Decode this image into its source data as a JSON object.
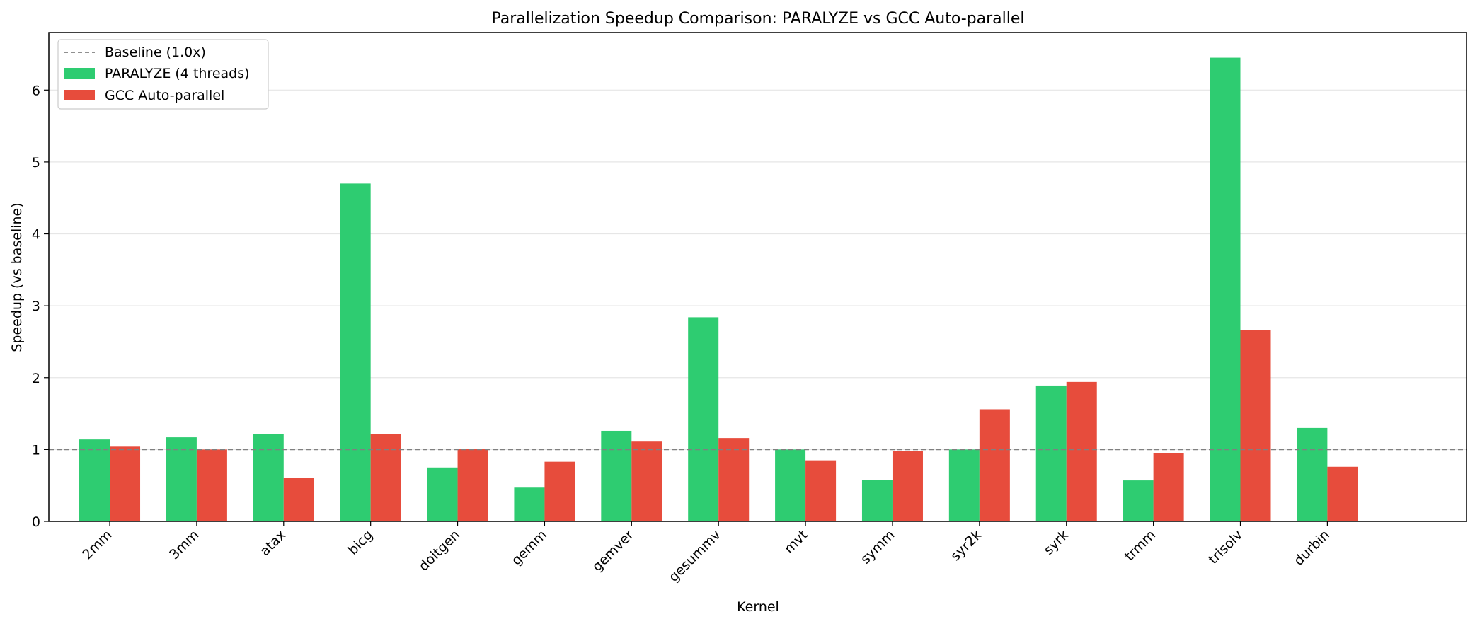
{
  "chart_data": {
    "type": "bar",
    "title": "Parallelization Speedup Comparison: PARALYZE vs GCC Auto-parallel",
    "xlabel": "Kernel",
    "ylabel": "Speedup (vs baseline)",
    "ylim": [
      0,
      6.8
    ],
    "yticks": [
      0,
      1,
      2,
      3,
      4,
      5,
      6
    ],
    "grid": "y",
    "legend_position": "top-left",
    "categories": [
      "2mm",
      "3mm",
      "atax",
      "bicg",
      "doitgen",
      "gemm",
      "gemver",
      "gesummv",
      "mvt",
      "symm",
      "syr2k",
      "syrk",
      "trmm",
      "trisolv",
      "durbin"
    ],
    "series": [
      {
        "name": "PARALYZE (4 threads)",
        "color": "#2ecc71",
        "values": [
          1.14,
          1.17,
          1.22,
          4.7,
          0.75,
          0.47,
          1.26,
          2.84,
          1.0,
          0.58,
          1.0,
          1.89,
          0.57,
          6.45,
          1.3
        ]
      },
      {
        "name": "GCC Auto-parallel",
        "color": "#e74c3c",
        "values": [
          1.04,
          1.0,
          0.61,
          1.22,
          1.01,
          0.83,
          1.11,
          1.16,
          0.85,
          0.98,
          1.56,
          1.94,
          0.95,
          2.66,
          0.76
        ]
      }
    ],
    "baseline": {
      "name": "Baseline (1.0x)",
      "value": 1.0,
      "color": "#808080"
    }
  }
}
